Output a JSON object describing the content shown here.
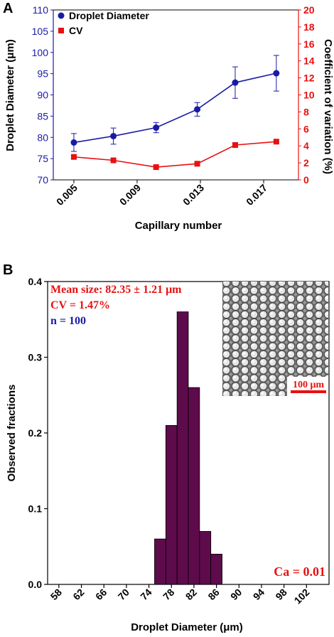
{
  "chart_data": [
    {
      "panel_label": "A",
      "type": "line",
      "xlabel": "Capillary number",
      "x": [
        0.005,
        0.0075,
        0.0102,
        0.0128,
        0.0152,
        0.0178
      ],
      "x_ticks": [
        "0.005",
        "0.009",
        "0.013",
        "0.017"
      ],
      "x_tick_values": [
        0.005,
        0.009,
        0.013,
        0.017
      ],
      "y_left": {
        "label": "Droplet Diameter (μm)",
        "lim": [
          70,
          110
        ],
        "ticks": [
          "70",
          "75",
          "80",
          "85",
          "90",
          "95",
          "100",
          "105",
          "110"
        ],
        "tick_values": [
          70,
          75,
          80,
          85,
          90,
          95,
          100,
          105,
          110
        ]
      },
      "y_right": {
        "label": "Coefficient of variation (%)",
        "lim": [
          0,
          20
        ],
        "ticks": [
          "0",
          "2",
          "4",
          "6",
          "8",
          "10",
          "12",
          "14",
          "16",
          "18",
          "20"
        ],
        "tick_values": [
          0,
          2,
          4,
          6,
          8,
          10,
          12,
          14,
          16,
          18,
          20
        ]
      },
      "series": [
        {
          "name": "Droplet Diameter",
          "axis": "left",
          "color": "#1a1aa6",
          "marker": "circle",
          "values": [
            78.8,
            80.3,
            82.3,
            86.6,
            92.9,
            95.1
          ],
          "error": [
            2.1,
            1.9,
            1.2,
            1.6,
            3.7,
            4.2
          ]
        },
        {
          "name": "CV",
          "axis": "right",
          "color": "#e81010",
          "marker": "square",
          "values": [
            2.7,
            2.3,
            1.5,
            1.9,
            4.1,
            4.5
          ]
        }
      ],
      "legend": "top-left"
    },
    {
      "panel_label": "B",
      "type": "bar",
      "xlabel": "Droplet Diameter (μm)",
      "ylabel": "Observed fractions",
      "x_ticks": [
        "58",
        "62",
        "66",
        "70",
        "74",
        "78",
        "82",
        "86",
        "90",
        "94",
        "98",
        "102"
      ],
      "x_tick_values": [
        58,
        62,
        66,
        70,
        74,
        78,
        82,
        86,
        90,
        94,
        98,
        102
      ],
      "y_ticks": [
        "0.0",
        "0.1",
        "0.2",
        "0.3",
        "0.4"
      ],
      "y_tick_values": [
        0,
        0.1,
        0.2,
        0.3,
        0.4
      ],
      "ylim": [
        0,
        0.4
      ],
      "bar_color": "#5e0b4c",
      "bin_width": 2,
      "bins": [
        {
          "start": 75,
          "value": 0.06
        },
        {
          "start": 77,
          "value": 0.21
        },
        {
          "start": 79,
          "value": 0.36
        },
        {
          "start": 81,
          "value": 0.26
        },
        {
          "start": 83,
          "value": 0.07
        },
        {
          "start": 85,
          "value": 0.04
        }
      ],
      "annotations": {
        "mean": "Mean size: 82.35 ± 1.21 μm",
        "cv": "CV = 1.47%",
        "n": "n = 100",
        "ca": "Ca = 0.01",
        "scale_bar": "100 μm"
      },
      "annotation_colors": {
        "mean": "#e81010",
        "cv": "#e81010",
        "n": "#1a1aa6",
        "ca": "#e81010",
        "scale_bar": "#e81010"
      }
    }
  ]
}
